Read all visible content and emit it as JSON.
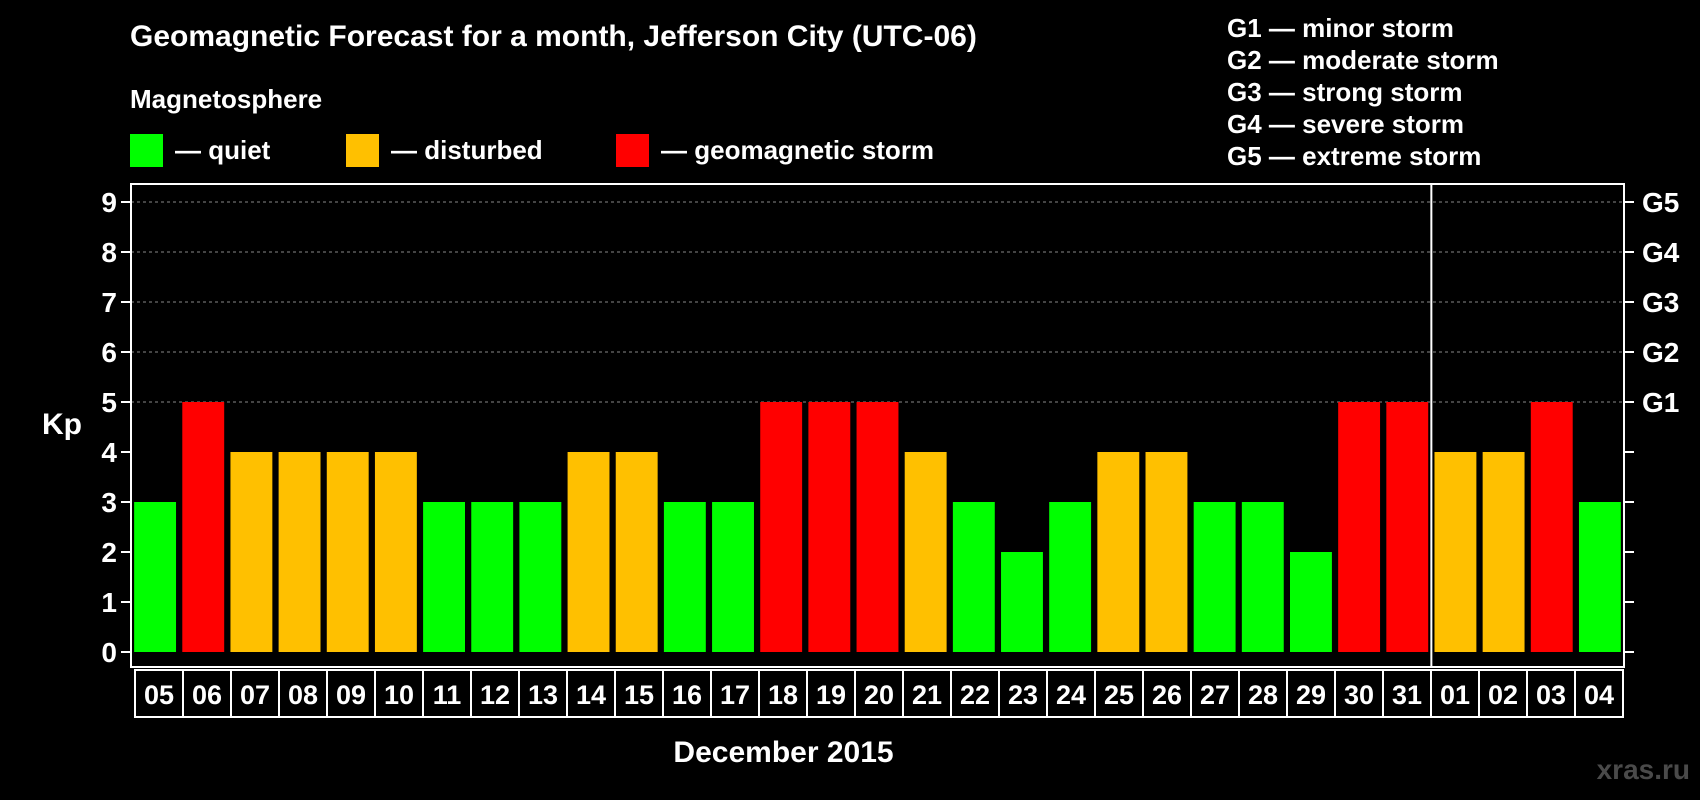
{
  "colors": {
    "quiet": "#00ff00",
    "disturbed": "#ffc000",
    "storm": "#ff0000",
    "background": "#000000",
    "axis": "#ffffff",
    "grid": "#888888",
    "watermark": "#4a4a4a"
  },
  "legend": {
    "subtitle": "Magnetosphere",
    "quiet_label": "— quiet",
    "disturbed_label": "— disturbed",
    "storm_label": "— geomagnetic storm"
  },
  "g_legend": [
    "G1 — minor storm",
    "G2 — moderate storm",
    "G3 — strong storm",
    "G4 — severe storm",
    "G5 — extreme storm"
  ],
  "watermark": "xras.ru",
  "chart_data": {
    "type": "bar",
    "title": "Geomagnetic Forecast for a month, Jefferson City (UTC-06)",
    "xlabel": "December 2015",
    "ylabel": "Kp",
    "ylim": [
      0,
      9
    ],
    "y_ticks": [
      "0",
      "1",
      "2",
      "3",
      "4",
      "5",
      "6",
      "7",
      "8",
      "9"
    ],
    "right_ticks": [
      {
        "value": 5,
        "label": "G1"
      },
      {
        "value": 6,
        "label": "G2"
      },
      {
        "value": 7,
        "label": "G3"
      },
      {
        "value": 8,
        "label": "G4"
      },
      {
        "value": 9,
        "label": "G5"
      }
    ],
    "grid": "dashed horizontal at Kp 5-9",
    "month_separator_after": "31",
    "categories": [
      "05",
      "06",
      "07",
      "08",
      "09",
      "10",
      "11",
      "12",
      "13",
      "14",
      "15",
      "16",
      "17",
      "18",
      "19",
      "20",
      "21",
      "22",
      "23",
      "24",
      "25",
      "26",
      "27",
      "28",
      "29",
      "30",
      "31",
      "01",
      "02",
      "03",
      "04"
    ],
    "values": [
      3,
      5,
      4,
      4,
      4,
      4,
      3,
      3,
      3,
      4,
      4,
      3,
      3,
      5,
      5,
      5,
      4,
      3,
      2,
      3,
      4,
      4,
      3,
      3,
      2,
      5,
      5,
      4,
      4,
      5,
      3
    ]
  }
}
